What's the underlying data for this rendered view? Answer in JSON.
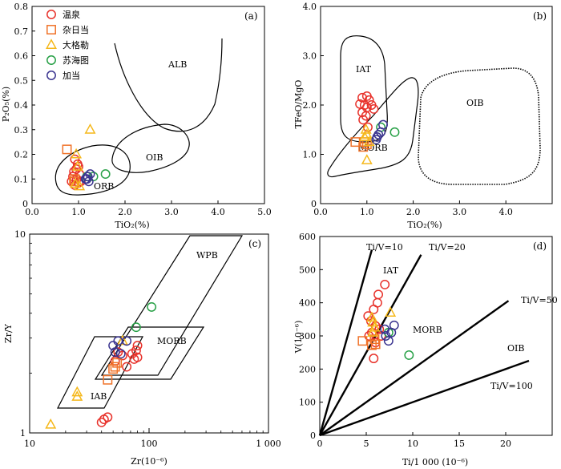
{
  "colors": {
    "wenquan": "#e8322b",
    "zariedang": "#f07228",
    "dagele": "#f5b81b",
    "suhaitu": "#27a046",
    "jiadang": "#3b3590"
  },
  "legend": [
    {
      "name": "温泉",
      "symbol": "circle",
      "color": "#e8322b"
    },
    {
      "name": "杂日当",
      "symbol": "square",
      "color": "#f07228"
    },
    {
      "name": "大格勒",
      "symbol": "triangle",
      "color": "#f5b81b"
    },
    {
      "name": "苏海图",
      "symbol": "circle",
      "color": "#27a046"
    },
    {
      "name": "加当",
      "symbol": "circle",
      "color": "#3b3590"
    }
  ],
  "chart_data": [
    {
      "panel": "(a)",
      "type": "scatter",
      "xlabel": "TiO₂(%)",
      "ylabel": "P₂O₅(%)",
      "xlim": [
        0,
        5
      ],
      "ylim": [
        0,
        0.8
      ],
      "xticks": [
        "0.0",
        "1.0",
        "2.0",
        "3.0",
        "4.0",
        "5.0"
      ],
      "yticks": [
        "0",
        "0.1",
        "0.2",
        "0.3",
        "0.4",
        "0.5",
        "0.6",
        "0.7",
        "0.8"
      ],
      "fields": [
        "ALB",
        "OIB",
        "ORB"
      ],
      "series": [
        {
          "name": "温泉",
          "points": [
            [
              0.92,
              0.18
            ],
            [
              0.98,
              0.16
            ],
            [
              0.95,
              0.14
            ],
            [
              1.02,
              0.12
            ],
            [
              0.88,
              0.11
            ],
            [
              0.96,
              0.1
            ],
            [
              0.85,
              0.09
            ],
            [
              1.0,
              0.085
            ],
            [
              0.92,
              0.075
            ],
            [
              1.05,
              0.09
            ],
            [
              0.9,
              0.13
            ],
            [
              1.0,
              0.15
            ]
          ]
        },
        {
          "name": "杂日当",
          "points": [
            [
              0.75,
              0.22
            ],
            [
              0.92,
              0.1
            ],
            [
              0.9,
              0.09
            ]
          ]
        },
        {
          "name": "大格勒",
          "points": [
            [
              1.25,
              0.3
            ],
            [
              0.95,
              0.2
            ],
            [
              0.98,
              0.15
            ],
            [
              0.93,
              0.08
            ],
            [
              1.02,
              0.07
            ]
          ]
        },
        {
          "name": "苏海图",
          "points": [
            [
              1.58,
              0.12
            ],
            [
              1.32,
              0.11
            ],
            [
              1.18,
              0.11
            ]
          ]
        },
        {
          "name": "加当",
          "points": [
            [
              1.2,
              0.11
            ],
            [
              1.22,
              0.09
            ],
            [
              1.18,
              0.1
            ],
            [
              1.25,
              0.12
            ],
            [
              1.15,
              0.1
            ]
          ]
        }
      ]
    },
    {
      "panel": "(b)",
      "type": "scatter",
      "xlabel": "TiO₂(%)",
      "ylabel": "TFeO/MgO",
      "xlim": [
        0,
        5
      ],
      "ylim": [
        0,
        4
      ],
      "xticks": [
        "0.0",
        "1.0",
        "2.0",
        "3.0",
        "4.0"
      ],
      "yticks": [
        "0",
        "1.0",
        "2.0",
        "3.0",
        "4.0"
      ],
      "fields": [
        "IAT",
        "OIB",
        "MORB"
      ],
      "series": [
        {
          "name": "温泉",
          "points": [
            [
              0.9,
              2.15
            ],
            [
              1.0,
              2.18
            ],
            [
              1.05,
              2.1
            ],
            [
              0.85,
              2.02
            ],
            [
              0.95,
              2.0
            ],
            [
              1.1,
              2.0
            ],
            [
              1.0,
              1.95
            ],
            [
              0.9,
              1.85
            ],
            [
              1.15,
              1.92
            ],
            [
              0.98,
              1.78
            ],
            [
              0.92,
              1.7
            ],
            [
              1.02,
              1.55
            ]
          ]
        },
        {
          "name": "杂日当",
          "points": [
            [
              0.75,
              1.25
            ],
            [
              0.92,
              1.15
            ],
            [
              1.0,
              1.2
            ],
            [
              0.95,
              1.25
            ]
          ]
        },
        {
          "name": "大格勒",
          "points": [
            [
              0.98,
              1.5
            ],
            [
              1.0,
              1.4
            ],
            [
              0.95,
              1.35
            ],
            [
              1.0,
              0.88
            ],
            [
              1.05,
              1.25
            ]
          ]
        },
        {
          "name": "苏海图",
          "points": [
            [
              1.6,
              1.45
            ],
            [
              1.3,
              1.55
            ]
          ]
        },
        {
          "name": "加当",
          "points": [
            [
              1.35,
              1.6
            ],
            [
              1.25,
              1.4
            ],
            [
              1.2,
              1.3
            ],
            [
              1.22,
              1.35
            ],
            [
              1.3,
              1.45
            ]
          ]
        }
      ]
    },
    {
      "panel": "(c)",
      "type": "scatter",
      "xlabel": "Zr(10⁻⁶)",
      "ylabel": "Zr/Y",
      "xscale": "log",
      "yscale": "log",
      "xlim": [
        10,
        1000
      ],
      "ylim": [
        1,
        10
      ],
      "xticks": [
        "10",
        "100",
        "1 000"
      ],
      "yticks": [
        "1",
        "10"
      ],
      "fields": [
        "WPB",
        "MORB",
        "IAB"
      ],
      "series": [
        {
          "name": "温泉",
          "points": [
            [
              80,
              2.75
            ],
            [
              78,
              2.6
            ],
            [
              72,
              2.5
            ],
            [
              75,
              2.35
            ],
            [
              80,
              2.4
            ],
            [
              60,
              2.45
            ],
            [
              65,
              2.15
            ],
            [
              55,
              2.55
            ],
            [
              52,
              2.3
            ],
            [
              40,
              1.13
            ],
            [
              42,
              1.17
            ],
            [
              45,
              1.2
            ]
          ]
        },
        {
          "name": "杂日当",
          "points": [
            [
              45,
              1.85
            ],
            [
              52,
              2.15
            ],
            [
              54,
              2.25
            ],
            [
              50,
              2.1
            ]
          ]
        },
        {
          "name": "大格勒",
          "points": [
            [
              15,
              1.1
            ],
            [
              25,
              1.6
            ],
            [
              25,
              1.52
            ],
            [
              60,
              2.9
            ]
          ]
        },
        {
          "name": "苏海图",
          "points": [
            [
              105,
              4.3
            ],
            [
              78,
              3.4
            ]
          ]
        },
        {
          "name": "加当",
          "points": [
            [
              50,
              2.75
            ],
            [
              55,
              2.9
            ],
            [
              65,
              2.9
            ],
            [
              52,
              2.55
            ],
            [
              58,
              2.5
            ]
          ]
        }
      ]
    },
    {
      "panel": "(d)",
      "type": "scatter",
      "xlabel": "Ti/1 000 (10⁻⁶)",
      "ylabel": "V(10⁻⁶)",
      "xlim": [
        0,
        25
      ],
      "ylim": [
        0,
        600
      ],
      "xticks": [
        "0",
        "5",
        "10",
        "15",
        "20"
      ],
      "yticks": [
        "0",
        "100",
        "200",
        "300",
        "400",
        "500",
        "600"
      ],
      "fields": [
        "IAT",
        "MORB",
        "OIB"
      ],
      "lines": [
        {
          "label": "Ti/V=10",
          "ratio": 10
        },
        {
          "label": "Ti/V=20",
          "ratio": 20
        },
        {
          "label": "Ti/V=50",
          "ratio": 50
        },
        {
          "label": "Ti/V=100",
          "ratio": 100
        }
      ],
      "series": [
        {
          "name": "温泉",
          "points": [
            [
              7.0,
              455
            ],
            [
              6.3,
              425
            ],
            [
              6.2,
              400
            ],
            [
              5.8,
              380
            ],
            [
              5.2,
              360
            ],
            [
              5.5,
              345
            ],
            [
              6.0,
              330
            ],
            [
              6.4,
              320
            ],
            [
              5.6,
              310
            ],
            [
              5.3,
              300
            ],
            [
              6.0,
              280
            ],
            [
              5.8,
              232
            ],
            [
              6.6,
              300
            ]
          ]
        },
        {
          "name": "杂日当",
          "points": [
            [
              4.6,
              285
            ],
            [
              5.6,
              272
            ],
            [
              6.0,
              275
            ],
            [
              5.9,
              290
            ]
          ]
        },
        {
          "name": "大格勒",
          "points": [
            [
              5.6,
              355
            ],
            [
              5.7,
              340
            ],
            [
              7.6,
              370
            ],
            [
              5.9,
              325
            ],
            [
              5.7,
              310
            ]
          ]
        },
        {
          "name": "苏海图",
          "points": [
            [
              9.6,
              242
            ],
            [
              7.4,
              310
            ]
          ]
        },
        {
          "name": "加当",
          "points": [
            [
              8.0,
              332
            ],
            [
              7.0,
              320
            ],
            [
              7.1,
              300
            ],
            [
              7.4,
              285
            ],
            [
              7.7,
              310
            ]
          ]
        }
      ]
    }
  ]
}
